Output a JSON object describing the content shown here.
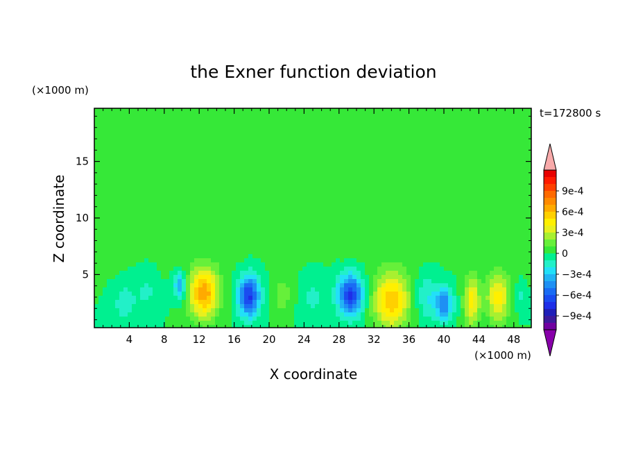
{
  "chart_data": {
    "type": "heatmap",
    "title": "the Exner function deviation",
    "xlabel": "X coordinate",
    "ylabel": "Z coordinate",
    "x_unit": "(×1000 m)",
    "y_unit": "(×1000 m)",
    "time_label": "t=172800 s",
    "xlim": [
      0,
      50
    ],
    "ylim": [
      0.3,
      19.7
    ],
    "x_ticks": [
      4,
      8,
      12,
      16,
      20,
      24,
      28,
      32,
      36,
      40,
      44,
      48
    ],
    "y_ticks": [
      5,
      10,
      15
    ],
    "x_tick_labels": [
      "4",
      "8",
      "12",
      "16",
      "20",
      "24",
      "28",
      "32",
      "36",
      "40",
      "44",
      "48"
    ],
    "y_tick_labels": [
      "5",
      "10",
      "15"
    ],
    "colorbar": {
      "levels": [
        -0.0011,
        -0.001,
        -0.0009,
        -0.0008,
        -0.0007,
        -0.0006,
        -0.0005,
        -0.0004,
        -0.0003,
        -0.0002,
        -0.0001,
        0,
        0.0001,
        0.0002,
        0.0003,
        0.0004,
        0.0005,
        0.0006,
        0.0007,
        0.0008,
        0.0009,
        0.001,
        0.0011
      ],
      "colors": [
        "#7000a0",
        "#3c1a9c",
        "#1f1fb8",
        "#1e2ee8",
        "#1a4cf0",
        "#1a6cf4",
        "#1e90f4",
        "#22b4f4",
        "#22e0f8",
        "#22f0c8",
        "#00f090",
        "#36e838",
        "#66f03a",
        "#a8f030",
        "#e8f01e",
        "#fff000",
        "#ffd000",
        "#ffaa00",
        "#ff8a00",
        "#ff6a00",
        "#ff4000",
        "#ff1a00",
        "#e80000"
      ],
      "under_color": "#8800aa",
      "over_color": "#f8aaaa",
      "tick_labels": [
        "9e-4",
        "6e-4",
        "3e-4",
        "0",
        "−3e-4",
        "−6e-4",
        "−9e-4"
      ],
      "tick_values": [
        0.0009,
        0.0006,
        0.0003,
        0,
        -0.0003,
        -0.0006,
        -0.0009
      ]
    },
    "features": [
      {
        "x": 3.5,
        "z": 2.5,
        "sx": 1.2,
        "sz": 1.6,
        "amp": -0.00018
      },
      {
        "x": 6.0,
        "z": 3.5,
        "sx": 1.2,
        "sz": 1.8,
        "amp": -0.00012
      },
      {
        "x": 9.8,
        "z": 4.0,
        "sx": 0.7,
        "sz": 1.2,
        "amp": -0.0004
      },
      {
        "x": 12.5,
        "z": 3.4,
        "sx": 1.7,
        "sz": 2.2,
        "amp": 0.00068
      },
      {
        "x": 17.7,
        "z": 3.1,
        "sx": 1.2,
        "sz": 1.8,
        "amp": -0.00072
      },
      {
        "x": 21.5,
        "z": 3.2,
        "sx": 1.2,
        "sz": 1.8,
        "amp": 0.00015
      },
      {
        "x": 25.0,
        "z": 3.0,
        "sx": 1.5,
        "sz": 2.0,
        "amp": -0.00012
      },
      {
        "x": 29.3,
        "z": 3.2,
        "sx": 1.4,
        "sz": 1.8,
        "amp": -0.00072
      },
      {
        "x": 34.0,
        "z": 2.7,
        "sx": 2.0,
        "sz": 2.5,
        "amp": 0.00058
      },
      {
        "x": 38.0,
        "z": 3.0,
        "sx": 1.2,
        "sz": 2.0,
        "amp": -0.0002
      },
      {
        "x": 40.0,
        "z": 2.4,
        "sx": 1.0,
        "sz": 1.4,
        "amp": -0.0005
      },
      {
        "x": 43.2,
        "z": 2.6,
        "sx": 0.9,
        "sz": 2.2,
        "amp": 0.00045
      },
      {
        "x": 46.2,
        "z": 3.0,
        "sx": 1.3,
        "sz": 2.2,
        "amp": 0.00045
      },
      {
        "x": 48.7,
        "z": 3.0,
        "sx": 0.6,
        "sz": 1.2,
        "amp": -0.00012
      }
    ]
  }
}
